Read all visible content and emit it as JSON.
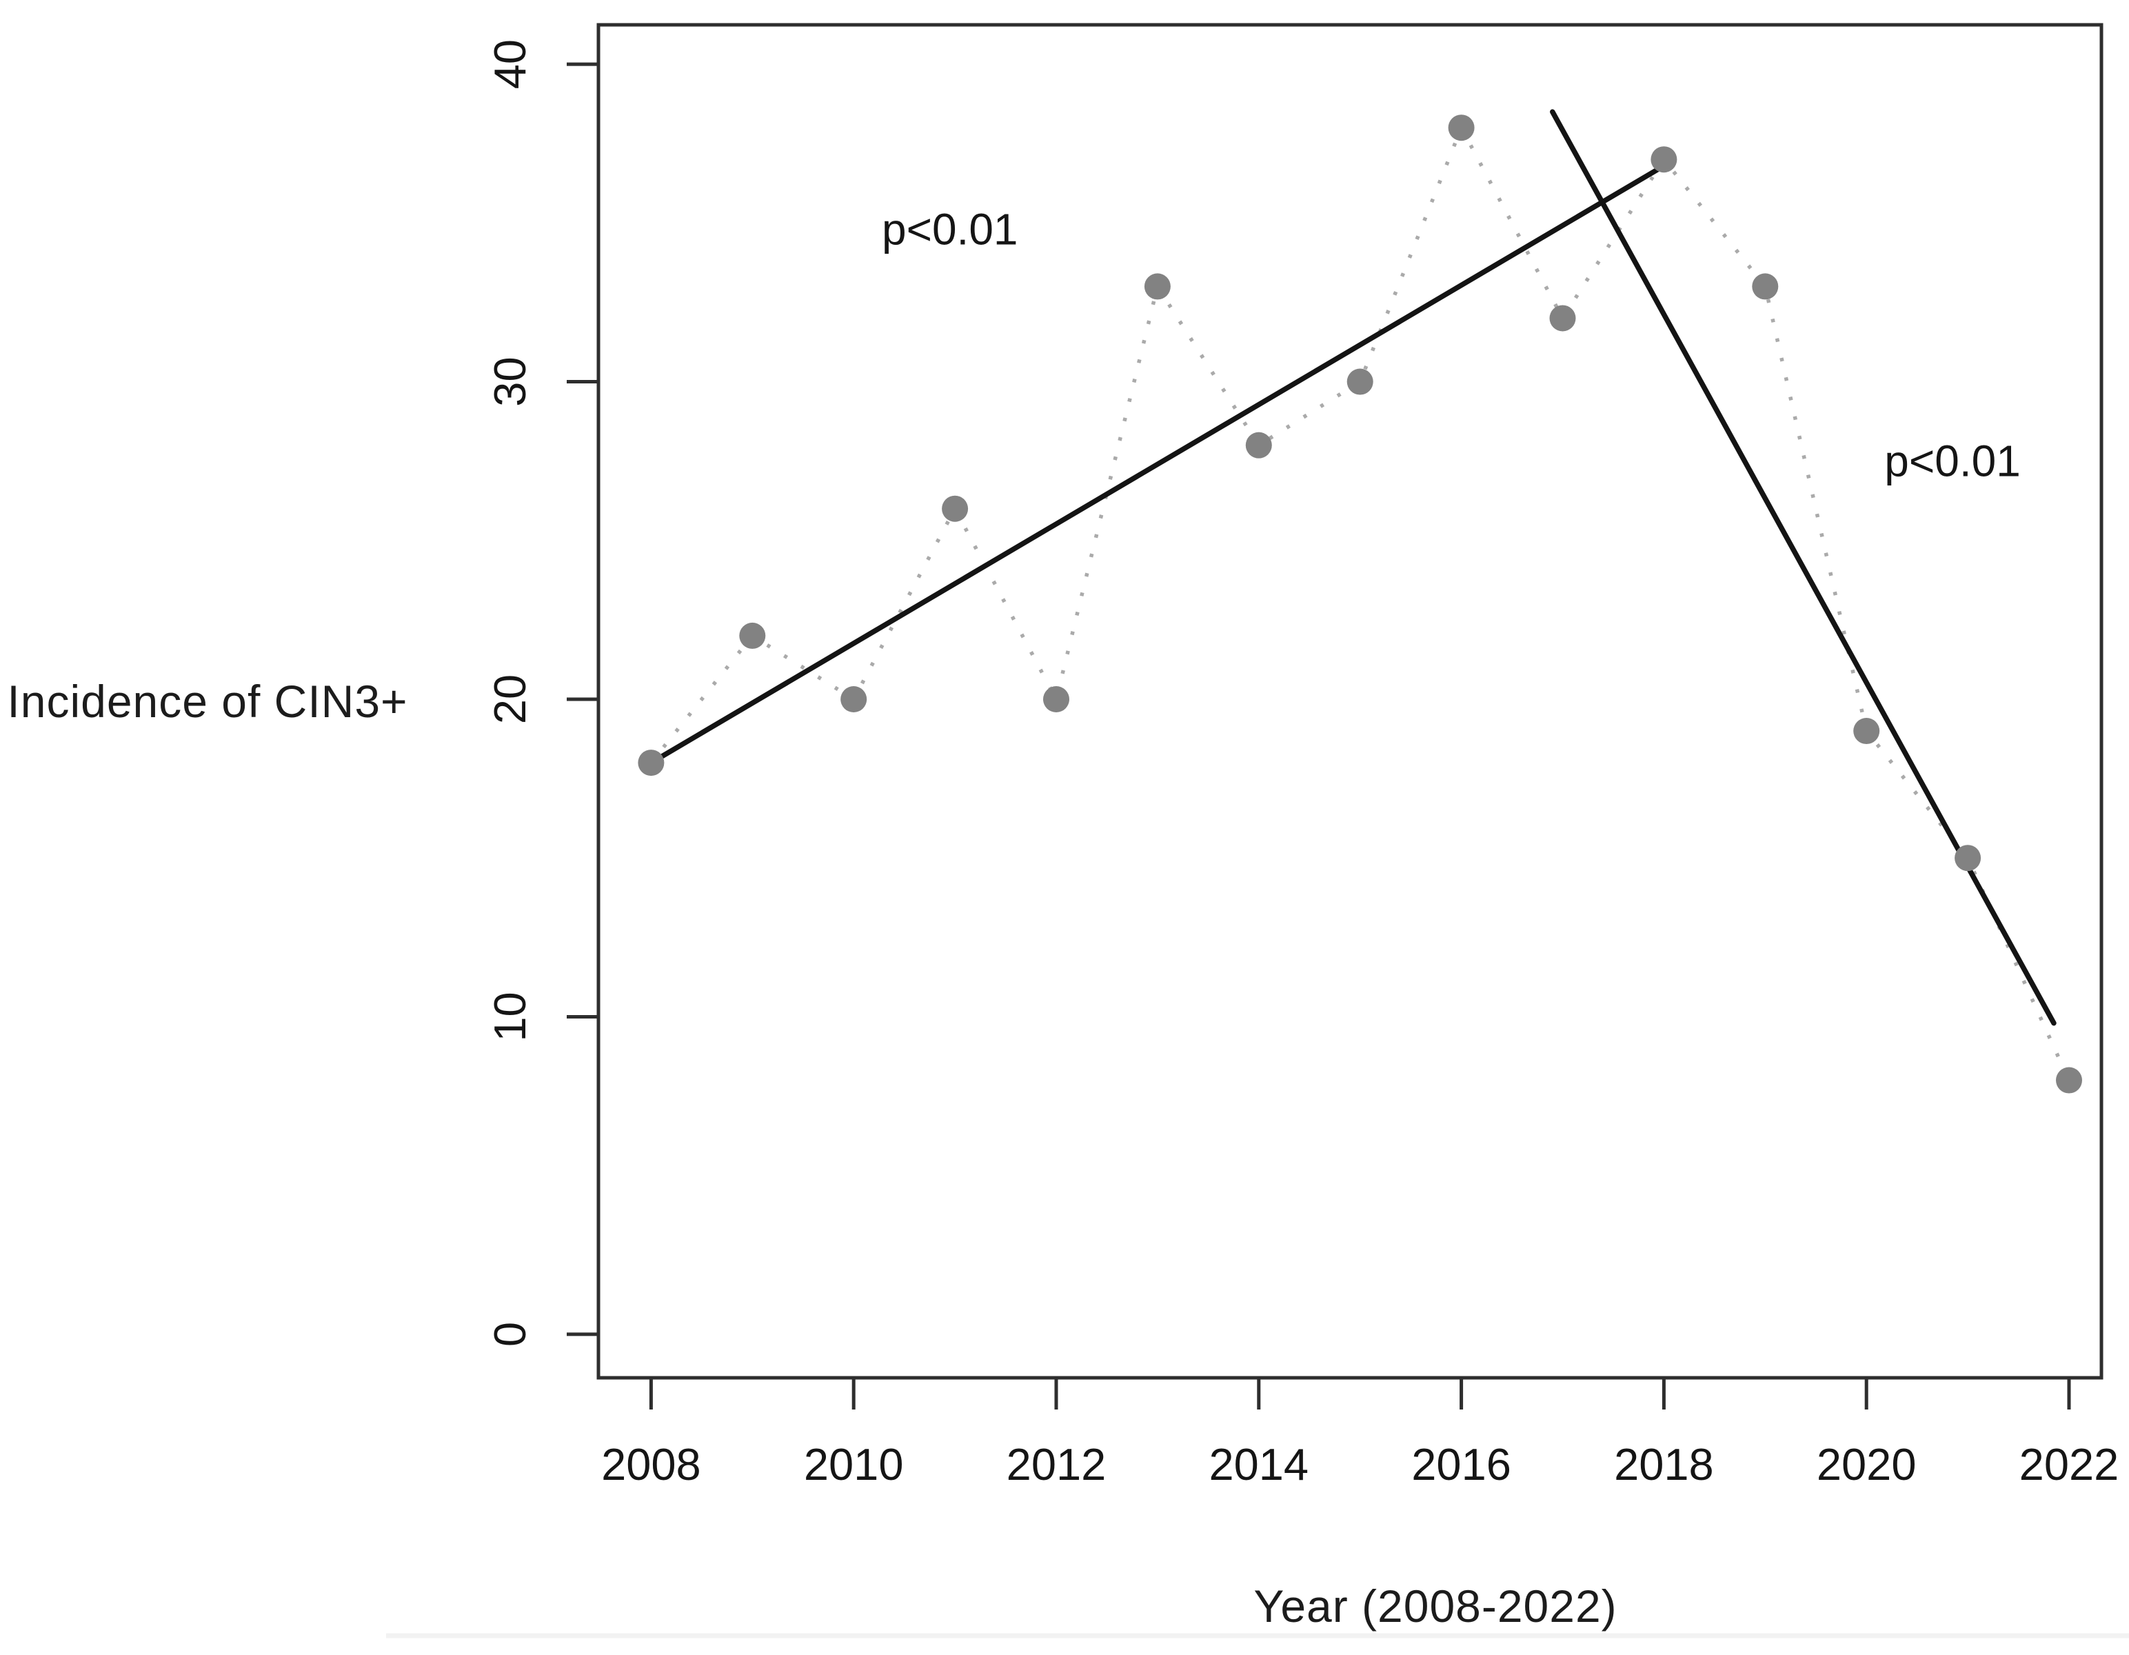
{
  "chart_data": {
    "type": "line",
    "title": "",
    "xlabel": "Year (2008-2022)",
    "ylabel": "Incidence of CIN3+",
    "x": [
      2008,
      2009,
      2010,
      2011,
      2012,
      2013,
      2014,
      2015,
      2016,
      2017,
      2018,
      2019,
      2020,
      2021,
      2022
    ],
    "series": [
      {
        "name": "Incidence of CIN3+",
        "marker": "filled-circle",
        "line_style": "dotted",
        "values": [
          18,
          22,
          20,
          26,
          20,
          33,
          28,
          30,
          38,
          32,
          37,
          33,
          19,
          15,
          8
        ]
      }
    ],
    "x_ticks": [
      "2008",
      "2010",
      "2012",
      "2014",
      "2016",
      "2018",
      "2020",
      "2022"
    ],
    "y_ticks": [
      "0",
      "10",
      "20",
      "30",
      "40"
    ],
    "xlim": [
      2007.48,
      2022.32
    ],
    "ylim": [
      -1.37,
      41.24
    ],
    "grid": false,
    "legend_position": "none",
    "trend_lines": [
      {
        "name": "rising-trend",
        "x1": 2008.0,
        "y1": 18.0,
        "x2": 2018.0,
        "y2": 36.8
      },
      {
        "name": "falling-trend",
        "x1": 2016.9,
        "y1": 38.5,
        "x2": 2021.85,
        "y2": 9.8
      }
    ],
    "annotations": [
      {
        "text": "p<0.01",
        "x": 2010.95,
        "y": 34.8
      },
      {
        "text": "p<0.01",
        "x": 2020.85,
        "y": 27.5
      }
    ],
    "colors": {
      "marker": "#828282",
      "connector": "#aaaaaa",
      "trend": "#141414",
      "frame": "#2e2e2e",
      "tick": "#2e2e2e",
      "text": "#151515",
      "background": "#ffffff",
      "bottom_divider": "#f2f2f2"
    }
  }
}
